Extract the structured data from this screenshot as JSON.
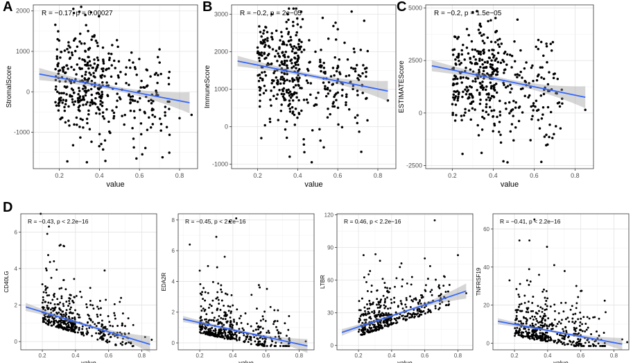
{
  "figure": {
    "panel_labels": [
      "A",
      "B",
      "C",
      "D"
    ]
  },
  "chart_data": [
    {
      "type": "scatter",
      "panel": "A",
      "xlabel": "value",
      "ylabel": "StromalScore",
      "stat_label": "R = −0.17, p = 0.00027",
      "xlim": [
        0.07,
        0.89
      ],
      "ylim": [
        -1900,
        2150
      ],
      "xticks": [
        0.2,
        0.4,
        0.6,
        0.8
      ],
      "xtick_labels": [
        "0.2",
        "0.4",
        "0.6",
        "0.8"
      ],
      "yticks": [
        -1000,
        0,
        1000,
        2000
      ],
      "ytick_labels": [
        "-1000",
        "0",
        "1000",
        "2000"
      ],
      "fit": {
        "x": [
          0.1,
          0.85
        ],
        "y": [
          440,
          -270
        ],
        "ci_start": 150,
        "ci_end": 260,
        "ci_mid": 55
      },
      "cloud": {
        "n": 420,
        "seed": 11,
        "xs": [
          [
            0.18,
            0.42,
            0.55
          ],
          [
            0.3,
            0.6,
            0.3
          ],
          [
            0.6,
            0.75,
            0.15
          ]
        ],
        "xmin": 0.1,
        "xmax": 0.86,
        "sd": 650,
        "skew": 0,
        "ymin": -1800,
        "ymax": 2100
      },
      "extra_points": [
        [
          0.27,
          2050
        ],
        [
          0.3,
          1980
        ],
        [
          0.33,
          1900
        ],
        [
          0.7,
          1050
        ],
        [
          0.86,
          -570
        ],
        [
          0.8,
          -650
        ],
        [
          0.24,
          -1720
        ],
        [
          0.43,
          -1710
        ],
        [
          0.57,
          -1160
        ]
      ]
    },
    {
      "type": "scatter",
      "panel": "B",
      "xlabel": "value",
      "ylabel": "ImmuneScore",
      "stat_label": "R = −0.2, p = 2e−05",
      "xlim": [
        0.07,
        0.89
      ],
      "ylim": [
        -1120,
        3250
      ],
      "xticks": [
        0.2,
        0.4,
        0.6,
        0.8
      ],
      "xtick_labels": [
        "0.2",
        "0.4",
        "0.6",
        "0.8"
      ],
      "yticks": [
        -1000,
        0,
        1000,
        2000,
        3000
      ],
      "ytick_labels": [
        "-1000",
        "0",
        "1000",
        "2000",
        "3000"
      ],
      "fit": {
        "x": [
          0.1,
          0.85
        ],
        "y": [
          1750,
          950
        ],
        "ci_start": 140,
        "ci_end": 270,
        "ci_mid": 55
      },
      "cloud": {
        "n": 420,
        "seed": 23,
        "xs": [
          [
            0.2,
            0.42,
            0.55
          ],
          [
            0.32,
            0.6,
            0.3
          ],
          [
            0.6,
            0.75,
            0.15
          ]
        ],
        "xmin": 0.1,
        "xmax": 0.86,
        "sd": 700,
        "skew": 0,
        "ymin": -950,
        "ymax": 3150
      },
      "extra_points": [
        [
          0.27,
          3000
        ],
        [
          0.35,
          3000
        ],
        [
          0.36,
          -800
        ],
        [
          0.47,
          -950
        ],
        [
          0.53,
          -550
        ],
        [
          0.85,
          700
        ],
        [
          0.6,
          2600
        ]
      ]
    },
    {
      "type": "scatter",
      "panel": "C",
      "xlabel": "value",
      "ylabel": "ESTIMATEScore",
      "stat_label": "R = −0.2, p = 1.5e−05",
      "xlim": [
        0.07,
        0.89
      ],
      "ylim": [
        -2650,
        5150
      ],
      "xticks": [
        0.2,
        0.4,
        0.6,
        0.8
      ],
      "xtick_labels": [
        "0.2",
        "0.4",
        "0.6",
        "0.8"
      ],
      "yticks": [
        -2500,
        0,
        2500,
        5000
      ],
      "ytick_labels": [
        "-2500",
        "0",
        "2500",
        "5000"
      ],
      "fit": {
        "x": [
          0.1,
          0.85
        ],
        "y": [
          2250,
          750
        ],
        "ci_start": 260,
        "ci_end": 520,
        "ci_mid": 110
      },
      "cloud": {
        "n": 420,
        "seed": 37,
        "xs": [
          [
            0.2,
            0.42,
            0.55
          ],
          [
            0.32,
            0.6,
            0.3
          ],
          [
            0.6,
            0.75,
            0.15
          ]
        ],
        "xmin": 0.1,
        "xmax": 0.86,
        "sd": 1250,
        "skew": 0,
        "ymin": -2450,
        "ymax": 4950
      },
      "extra_points": [
        [
          0.3,
          4800
        ],
        [
          0.32,
          4850
        ],
        [
          0.45,
          -2300
        ],
        [
          0.47,
          -2350
        ],
        [
          0.85,
          150
        ],
        [
          0.25,
          -1950
        ],
        [
          0.66,
          3300
        ]
      ]
    },
    {
      "type": "scatter",
      "panel": "D1",
      "xlabel": "value",
      "ylabel": "CD40LG",
      "stat_label": "R = −0.43, p < 2.2e−16",
      "xlim": [
        0.07,
        0.89
      ],
      "ylim": [
        -0.45,
        7.0
      ],
      "xticks": [
        0.2,
        0.4,
        0.6,
        0.8
      ],
      "xtick_labels": [
        "0.2",
        "0.4",
        "0.6",
        "0.8"
      ],
      "yticks": [
        0,
        2,
        4,
        6
      ],
      "ytick_labels": [
        "0",
        "2",
        "4",
        "6"
      ],
      "fit": {
        "x": [
          0.1,
          0.85
        ],
        "y": [
          1.9,
          -0.15
        ],
        "ci_start": 0.22,
        "ci_end": 0.45,
        "ci_mid": 0.08
      },
      "cloud": {
        "n": 430,
        "seed": 51,
        "xs": [
          [
            0.2,
            0.4,
            0.5
          ],
          [
            0.3,
            0.6,
            0.35
          ],
          [
            0.55,
            0.75,
            0.15
          ]
        ],
        "xmin": 0.1,
        "xmax": 0.86,
        "sd": 0.9,
        "skew": 1,
        "ymin": -0.25,
        "ymax": 6.9
      },
      "extra_points": [
        [
          0.19,
          7.0
        ],
        [
          0.24,
          6.3
        ],
        [
          0.31,
          5.3
        ],
        [
          0.23,
          5.9
        ],
        [
          0.27,
          4.4
        ],
        [
          0.82,
          0.25
        ],
        [
          0.86,
          0.1
        ]
      ]
    },
    {
      "type": "scatter",
      "panel": "D2",
      "xlabel": "value",
      "ylabel": "EDA2R",
      "stat_label": "R = −0.45, p < 2.2e−16",
      "xlim": [
        0.07,
        0.89
      ],
      "ylim": [
        -0.45,
        8.4
      ],
      "xticks": [
        0.2,
        0.4,
        0.6,
        0.8
      ],
      "xtick_labels": [
        "0.2",
        "0.4",
        "0.6",
        "0.8"
      ],
      "yticks": [
        0,
        2,
        4,
        6,
        8
      ],
      "ytick_labels": [
        "0",
        "2",
        "4",
        "6",
        "8"
      ],
      "fit": {
        "x": [
          0.1,
          0.85
        ],
        "y": [
          1.55,
          -0.2
        ],
        "ci_start": 0.2,
        "ci_end": 0.45,
        "ci_mid": 0.08
      },
      "cloud": {
        "n": 430,
        "seed": 67,
        "xs": [
          [
            0.2,
            0.4,
            0.5
          ],
          [
            0.3,
            0.6,
            0.35
          ],
          [
            0.55,
            0.75,
            0.15
          ]
        ],
        "xmin": 0.1,
        "xmax": 0.86,
        "sd": 1.0,
        "skew": 1,
        "ymin": -0.2,
        "ymax": 8.2
      },
      "extra_points": [
        [
          0.42,
          8.1
        ],
        [
          0.38,
          7.9
        ],
        [
          0.3,
          6.9
        ],
        [
          0.14,
          6.4
        ],
        [
          0.25,
          5.0
        ],
        [
          0.2,
          4.7
        ],
        [
          0.84,
          0.1
        ]
      ]
    },
    {
      "type": "scatter",
      "panel": "D3",
      "xlabel": "value",
      "ylabel": "LTBR",
      "stat_label": "R = 0.46, p < 2.2e−16",
      "xlim": [
        0.07,
        0.89
      ],
      "ylim": [
        -4,
        121
      ],
      "xticks": [
        0.2,
        0.4,
        0.6,
        0.8
      ],
      "xtick_labels": [
        "0.2",
        "0.4",
        "0.6",
        "0.8"
      ],
      "yticks": [
        0,
        30,
        60,
        90,
        120
      ],
      "ytick_labels": [
        "0",
        "30",
        "60",
        "90",
        "120"
      ],
      "fit": {
        "x": [
          0.1,
          0.85
        ],
        "y": [
          12,
          50
        ],
        "ci_start": 3,
        "ci_end": 7,
        "ci_mid": 1.2
      },
      "cloud": {
        "n": 430,
        "seed": 79,
        "xs": [
          [
            0.2,
            0.4,
            0.5
          ],
          [
            0.3,
            0.6,
            0.35
          ],
          [
            0.55,
            0.75,
            0.15
          ]
        ],
        "xmin": 0.1,
        "xmax": 0.86,
        "sd": 13,
        "skew": 1,
        "ymin": 2,
        "ymax": 118
      },
      "extra_points": [
        [
          0.66,
          115
        ],
        [
          0.8,
          83
        ],
        [
          0.85,
          48
        ],
        [
          0.6,
          80
        ],
        [
          0.72,
          63
        ],
        [
          0.45,
          72
        ],
        [
          0.28,
          55
        ]
      ]
    },
    {
      "type": "scatter",
      "panel": "D4",
      "xlabel": "value",
      "ylabel": "TNFRSF19",
      "stat_label": "R = −0.41, p < 2.2e−16",
      "xlim": [
        0.07,
        0.89
      ],
      "ylim": [
        -3.5,
        68
      ],
      "xticks": [
        0.2,
        0.4,
        0.6,
        0.8
      ],
      "xtick_labels": [
        "0.2",
        "0.4",
        "0.6",
        "0.8"
      ],
      "yticks": [
        0,
        20,
        40,
        60
      ],
      "ytick_labels": [
        "0",
        "20",
        "40",
        "60"
      ],
      "fit": {
        "x": [
          0.1,
          0.85
        ],
        "y": [
          11.5,
          -0.5
        ],
        "ci_start": 1.6,
        "ci_end": 3.2,
        "ci_mid": 0.6
      },
      "cloud": {
        "n": 430,
        "seed": 97,
        "xs": [
          [
            0.2,
            0.4,
            0.5
          ],
          [
            0.3,
            0.6,
            0.35
          ],
          [
            0.55,
            0.75,
            0.15
          ]
        ],
        "xmin": 0.1,
        "xmax": 0.86,
        "sd": 9,
        "skew": 1,
        "ymin": -1.5,
        "ymax": 66
      },
      "extra_points": [
        [
          0.32,
          65
        ],
        [
          0.23,
          54
        ],
        [
          0.29,
          54
        ],
        [
          0.44,
          41
        ],
        [
          0.17,
          33
        ],
        [
          0.85,
          2
        ],
        [
          0.88,
          0.5
        ]
      ]
    }
  ]
}
